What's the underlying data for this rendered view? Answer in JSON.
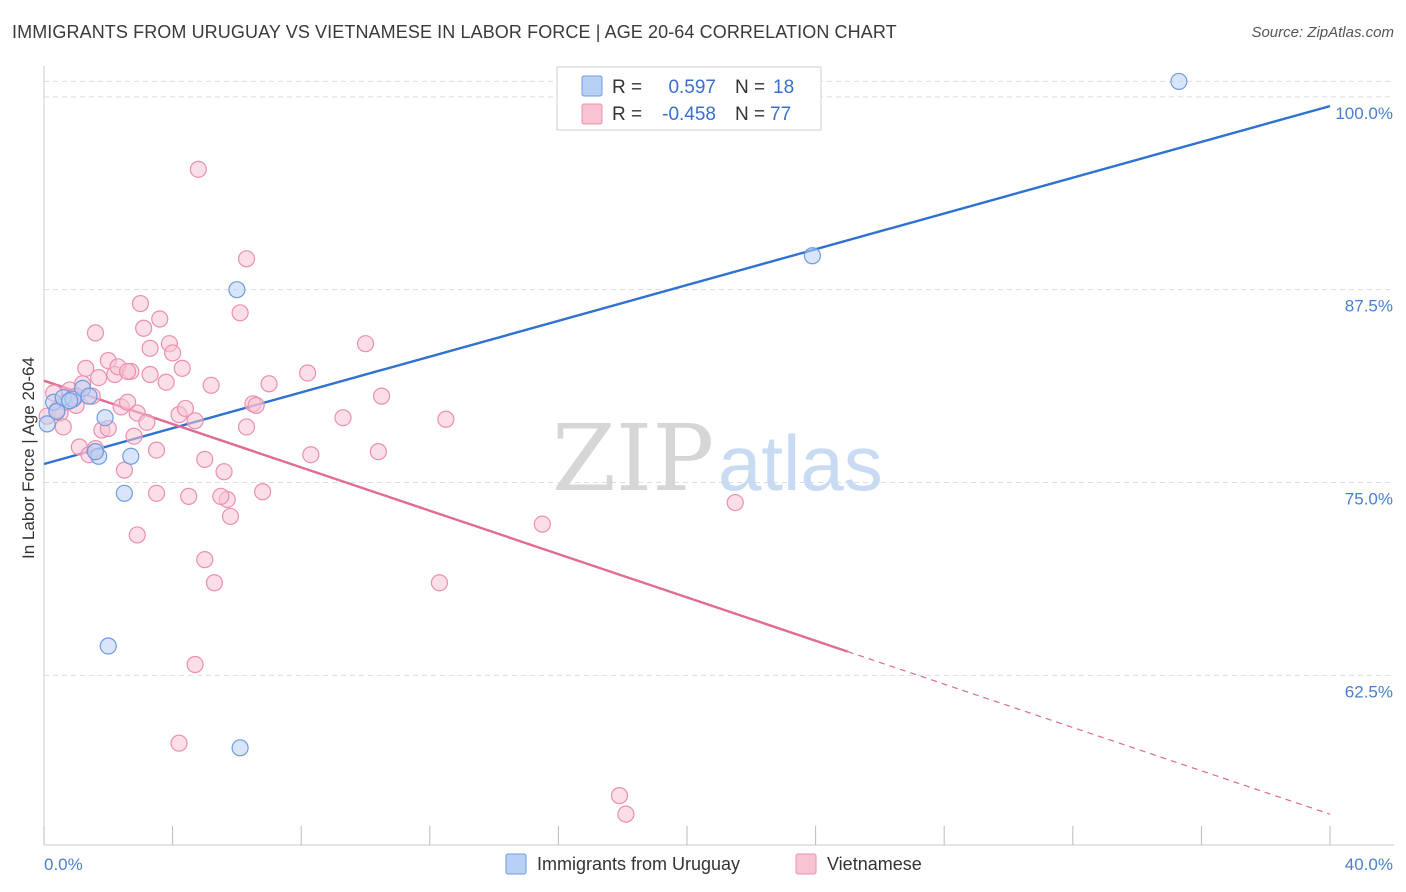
{
  "header": {
    "title": "IMMIGRANTS FROM URUGUAY VS VIETNAMESE IN LABOR FORCE | AGE 20-64 CORRELATION CHART",
    "source": "Source: ZipAtlas.com"
  },
  "watermark": {
    "zip": "ZIP",
    "atlas": "atlas"
  },
  "colors": {
    "uruguay_fill": "#b8d0f5",
    "uruguay_stroke": "#6f9be0",
    "uruguay_line": "#2f72d0",
    "vietnamese_fill": "#f8c3d3",
    "vietnamese_stroke": "#ec90ad",
    "vietnamese_line": "#e06b94",
    "value_text": "#3a6fd0",
    "grid": "#dddddd"
  },
  "legend": {
    "r_label": "R =",
    "n_label": "N =",
    "rows": [
      {
        "r": "0.597",
        "n": "18"
      },
      {
        "r": "-0.458",
        "n": "77"
      }
    ]
  },
  "bottom_legend": [
    "Immigrants from Uruguay",
    "Vietnamese"
  ],
  "chart_data": {
    "type": "scatter",
    "title": "IMMIGRANTS FROM URUGUAY VS VIETNAMESE IN LABOR FORCE | AGE 20-64 CORRELATION CHART",
    "xlabel": "",
    "ylabel": "In Labor Force | Age 20-64",
    "xlim": [
      0,
      40
    ],
    "ylim": [
      51.5,
      102
    ],
    "x_tick_labels": [
      {
        "value": 0,
        "label": "0.0%"
      },
      {
        "value": 40,
        "label": "40.0%"
      }
    ],
    "x_minor_ticks": [
      4,
      8,
      12,
      16,
      20,
      24,
      28,
      32,
      36
    ],
    "y_ticks": [
      {
        "value": 100,
        "label": "100.0%"
      },
      {
        "value": 87.5,
        "label": "87.5%"
      },
      {
        "value": 75,
        "label": "75.0%"
      },
      {
        "value": 62.5,
        "label": "62.5%"
      }
    ],
    "grid": true,
    "legend_position": "top-center",
    "series": [
      {
        "name": "Immigrants from Uruguay",
        "r": 0.597,
        "n": 18,
        "trend": {
          "x0": 0,
          "y0": 76.2,
          "x1": 40,
          "y1": 99.4,
          "dashed_from": null
        },
        "points": [
          [
            0.1,
            78.8
          ],
          [
            0.3,
            80.2
          ],
          [
            0.4,
            79.6
          ],
          [
            0.6,
            80.5
          ],
          [
            0.9,
            80.4
          ],
          [
            0.8,
            80.3
          ],
          [
            1.2,
            81.1
          ],
          [
            1.4,
            80.6
          ],
          [
            1.7,
            76.7
          ],
          [
            1.6,
            77.0
          ],
          [
            1.9,
            79.2
          ],
          [
            2.7,
            76.7
          ],
          [
            2.5,
            74.3
          ],
          [
            2.0,
            64.4
          ],
          [
            6.0,
            87.5
          ],
          [
            6.1,
            57.8
          ],
          [
            23.9,
            89.7
          ],
          [
            35.3,
            101.0
          ]
        ]
      },
      {
        "name": "Vietnamese",
        "r": -0.458,
        "n": 77,
        "trend": {
          "x0": 0,
          "y0": 81.6,
          "x1": 40,
          "y1": 53.5,
          "dashed_from": 25
        },
        "points": [
          [
            0.1,
            79.3
          ],
          [
            0.3,
            80.8
          ],
          [
            0.5,
            79.5
          ],
          [
            0.6,
            78.6
          ],
          [
            0.7,
            80.2
          ],
          [
            0.8,
            81.0
          ],
          [
            0.9,
            80.5
          ],
          [
            1.0,
            80.0
          ],
          [
            1.2,
            81.4
          ],
          [
            1.3,
            82.4
          ],
          [
            1.1,
            77.3
          ],
          [
            1.4,
            76.8
          ],
          [
            1.5,
            80.6
          ],
          [
            1.6,
            77.2
          ],
          [
            1.6,
            84.7
          ],
          [
            1.7,
            81.8
          ],
          [
            1.8,
            78.4
          ],
          [
            2.0,
            82.9
          ],
          [
            2.0,
            78.5
          ],
          [
            2.2,
            82.0
          ],
          [
            2.3,
            82.5
          ],
          [
            2.4,
            79.9
          ],
          [
            2.5,
            75.8
          ],
          [
            2.6,
            80.2
          ],
          [
            2.7,
            82.2
          ],
          [
            2.8,
            78.0
          ],
          [
            2.9,
            79.5
          ],
          [
            2.9,
            71.6
          ],
          [
            3.0,
            86.6
          ],
          [
            3.1,
            85.0
          ],
          [
            3.2,
            78.9
          ],
          [
            3.3,
            82.0
          ],
          [
            3.3,
            83.7
          ],
          [
            3.5,
            77.1
          ],
          [
            3.5,
            74.3
          ],
          [
            3.6,
            85.6
          ],
          [
            3.8,
            81.5
          ],
          [
            3.9,
            84.0
          ],
          [
            4.0,
            83.4
          ],
          [
            4.2,
            79.4
          ],
          [
            4.3,
            82.4
          ],
          [
            4.4,
            79.8
          ],
          [
            4.5,
            74.1
          ],
          [
            4.7,
            79.0
          ],
          [
            5.0,
            76.5
          ],
          [
            5.0,
            70.0
          ],
          [
            5.2,
            81.3
          ],
          [
            5.3,
            68.5
          ],
          [
            5.6,
            75.7
          ],
          [
            5.7,
            73.9
          ],
          [
            5.8,
            72.8
          ],
          [
            6.1,
            86.0
          ],
          [
            6.3,
            78.6
          ],
          [
            6.5,
            80.1
          ],
          [
            6.6,
            80.0
          ],
          [
            6.8,
            74.4
          ],
          [
            7.0,
            81.4
          ],
          [
            8.2,
            82.1
          ],
          [
            8.3,
            76.8
          ],
          [
            9.3,
            79.2
          ],
          [
            10.0,
            84.0
          ],
          [
            10.4,
            77.0
          ],
          [
            10.5,
            80.6
          ],
          [
            12.5,
            79.1
          ],
          [
            12.3,
            68.5
          ],
          [
            15.5,
            72.3
          ],
          [
            21.5,
            73.7
          ],
          [
            4.8,
            95.3
          ],
          [
            6.3,
            89.5
          ],
          [
            4.2,
            58.1
          ],
          [
            4.7,
            63.2
          ],
          [
            17.9,
            54.7
          ],
          [
            18.1,
            53.5
          ],
          [
            0.4,
            79.7
          ],
          [
            1.0,
            80.6
          ],
          [
            2.6,
            82.2
          ],
          [
            5.5,
            74.1
          ]
        ]
      }
    ]
  }
}
